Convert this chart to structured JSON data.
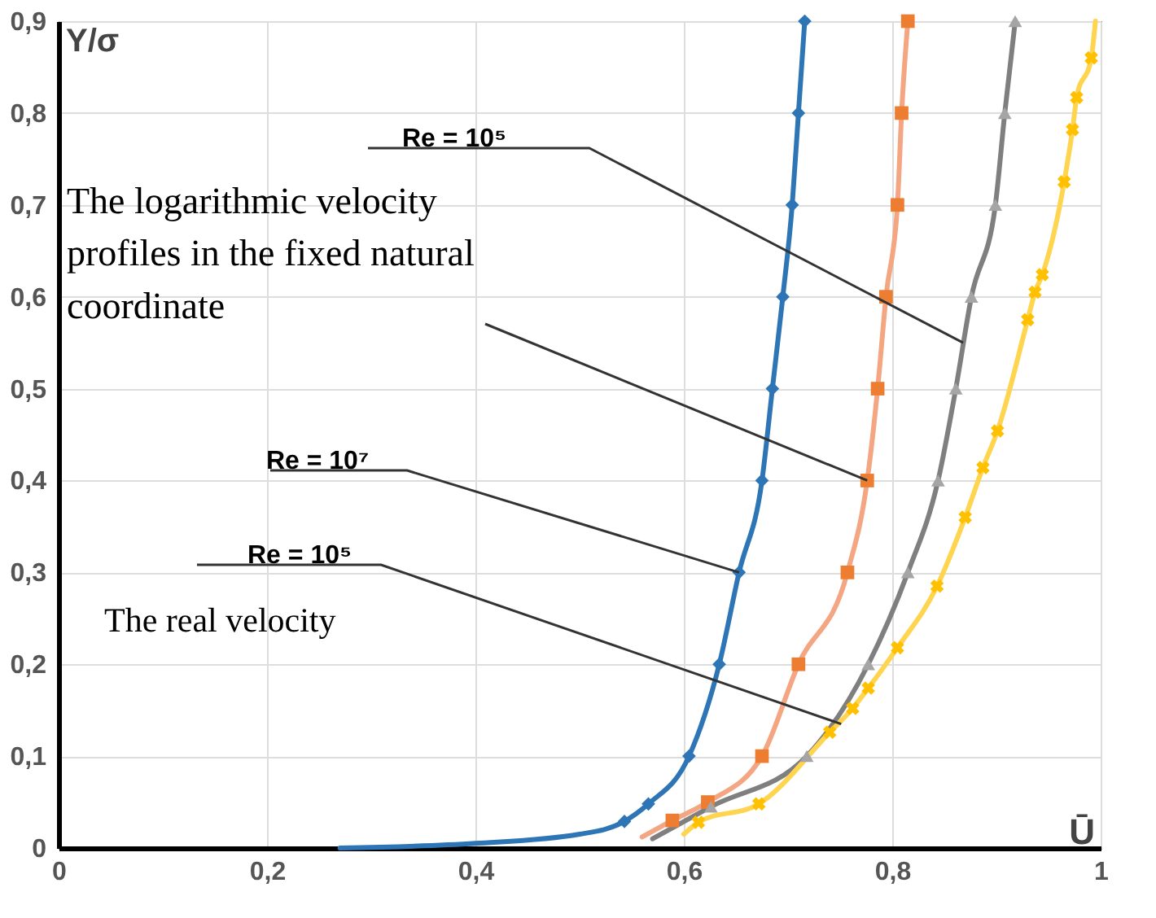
{
  "chart_data": {
    "type": "line",
    "xlabel": "Ū",
    "ylabel": "Y/σ",
    "xlim": [
      0,
      1
    ],
    "ylim": [
      0,
      0.9
    ],
    "xticks": [
      0,
      {
        "value": 0.2,
        "label": "0,2"
      },
      {
        "value": 0.4,
        "label": "0,4"
      },
      {
        "value": 0.6,
        "label": "0,6"
      },
      {
        "value": 0.8,
        "label": "0,8"
      },
      1
    ],
    "yticks": [
      0,
      {
        "value": 0.1,
        "label": "0,1"
      },
      {
        "value": 0.2,
        "label": "0,2"
      },
      {
        "value": 0.3,
        "label": "0,3"
      },
      {
        "value": 0.4,
        "label": "0,4"
      },
      {
        "value": 0.5,
        "label": "0,5"
      },
      {
        "value": 0.6,
        "label": "0,6"
      },
      {
        "value": 0.7,
        "label": "0,7"
      },
      {
        "value": 0.8,
        "label": "0,8"
      },
      {
        "value": 0.9,
        "label": "0,9"
      }
    ],
    "grid": true,
    "series": [
      {
        "marker": "none",
        "color": "#2e75b6",
        "x": [
          0.27,
          0.4,
          0.5,
          0.543,
          0.566,
          0.605,
          0.634,
          0.653,
          0.675,
          0.685,
          0.695,
          0.704,
          0.71,
          0.716
        ],
        "values": [
          0,
          0.005,
          0.015,
          0.029,
          0.048,
          0.1,
          0.2,
          0.3,
          0.4,
          0.5,
          0.6,
          0.7,
          0.8,
          0.9
        ]
      },
      {
        "marker": "none",
        "color": "#f4a582",
        "x": [
          0.56,
          0.589,
          0.623,
          0.675,
          0.71,
          0.757,
          0.776,
          0.786,
          0.794,
          0.805,
          0.809,
          0.815
        ],
        "values": [
          0.012,
          0.03,
          0.05,
          0.1,
          0.2,
          0.3,
          0.4,
          0.5,
          0.6,
          0.7,
          0.8,
          0.9
        ]
      },
      {
        "marker": "none",
        "color": "#7f7f7f",
        "x": [
          0.57,
          0.626,
          0.718,
          0.777,
          0.815,
          0.844,
          0.861,
          0.876,
          0.899,
          0.908,
          0.918
        ],
        "values": [
          0.01,
          0.045,
          0.1,
          0.2,
          0.3,
          0.4,
          0.5,
          0.6,
          0.7,
          0.8,
          0.9
        ]
      },
      {
        "marker": "none",
        "color": "#ffd44f",
        "x": [
          0.6,
          0.614,
          0.672,
          0.74,
          0.762,
          0.777,
          0.805,
          0.843,
          0.87,
          0.887,
          0.901,
          0.93,
          0.937,
          0.944,
          0.965,
          0.973,
          0.977,
          0.991,
          0.995
        ],
        "values": [
          0.015,
          0.028,
          0.048,
          0.126,
          0.152,
          0.174,
          0.218,
          0.285,
          0.36,
          0.414,
          0.454,
          0.575,
          0.605,
          0.624,
          0.725,
          0.782,
          0.817,
          0.86,
          0.9
        ]
      },
      {
        "type": "scatter",
        "marker": "diamond",
        "color": "#2e75b6",
        "x": [
          0.543,
          0.566,
          0.605,
          0.634,
          0.653,
          0.675,
          0.685,
          0.695,
          0.704,
          0.71,
          0.716
        ],
        "values": [
          0.029,
          0.048,
          0.1,
          0.2,
          0.3,
          0.4,
          0.5,
          0.6,
          0.7,
          0.8,
          0.9
        ]
      },
      {
        "type": "scatter",
        "marker": "square",
        "color": "#ed7d31",
        "x": [
          0.589,
          0.623,
          0.675,
          0.71,
          0.757,
          0.776,
          0.786,
          0.794,
          0.805,
          0.809,
          0.815
        ],
        "values": [
          0.03,
          0.05,
          0.1,
          0.2,
          0.3,
          0.4,
          0.5,
          0.6,
          0.7,
          0.8,
          0.9
        ]
      },
      {
        "type": "scatter",
        "marker": "triangle",
        "color": "#a5a5a5",
        "x": [
          0.626,
          0.718,
          0.777,
          0.815,
          0.844,
          0.861,
          0.876,
          0.899,
          0.908,
          0.918
        ],
        "values": [
          0.045,
          0.1,
          0.2,
          0.3,
          0.4,
          0.5,
          0.6,
          0.7,
          0.8,
          0.9
        ]
      },
      {
        "type": "scatter",
        "marker": "cross",
        "color": "#ffc000",
        "x": [
          0.614,
          0.672,
          0.74,
          0.762,
          0.777,
          0.805,
          0.843,
          0.87,
          0.887,
          0.901,
          0.93,
          0.937,
          0.944,
          0.965,
          0.973,
          0.977,
          0.991
        ],
        "values": [
          0.028,
          0.048,
          0.126,
          0.152,
          0.174,
          0.218,
          0.285,
          0.36,
          0.414,
          0.454,
          0.575,
          0.605,
          0.624,
          0.725,
          0.782,
          0.817,
          0.86
        ]
      }
    ],
    "annotations": [
      {
        "text": "Re = 10⁵",
        "x": 0.868,
        "y": 0.55
      },
      {
        "text": "The logarithmic velocity profiles in the fixed natural coordinate",
        "x": 0.776,
        "y": 0.4
      },
      {
        "text": "Re = 10⁷",
        "x": 0.653,
        "y": 0.3
      },
      {
        "text": "Re = 10⁵",
        "x": 0.751,
        "y": 0.135
      },
      "The real velocity"
    ]
  }
}
